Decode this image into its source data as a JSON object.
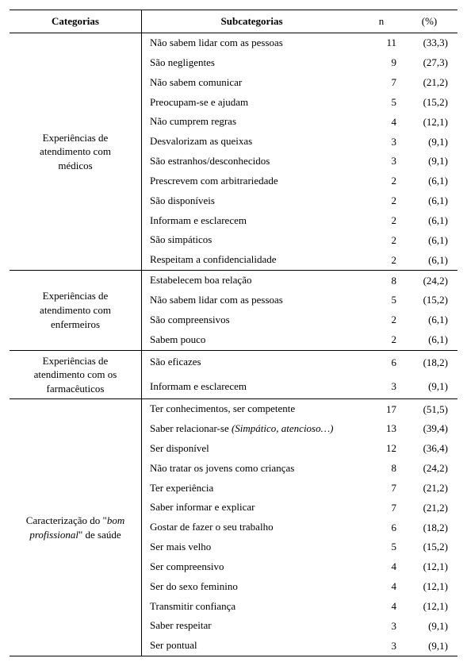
{
  "header": {
    "categorias": "Categorias",
    "subcategorias": "Subcategorias",
    "n": "n",
    "pct": "(%)"
  },
  "groups": [
    {
      "category": "Experiências de\natendimento com\nmédicos",
      "rows": [
        {
          "sub": "Não sabem lidar com as pessoas",
          "n": "11",
          "pct": "(33,3)"
        },
        {
          "sub": "São negligentes",
          "n": "9",
          "pct": "(27,3)"
        },
        {
          "sub": "Não sabem comunicar",
          "n": "7",
          "pct": "(21,2)"
        },
        {
          "sub": "Preocupam-se e ajudam",
          "n": "5",
          "pct": "(15,2)"
        },
        {
          "sub": "Não cumprem regras",
          "n": "4",
          "pct": "(12,1)"
        },
        {
          "sub": "Desvalorizam as queixas",
          "n": "3",
          "pct": "(9,1)"
        },
        {
          "sub": "São estranhos/desconhecidos",
          "n": "3",
          "pct": "(9,1)"
        },
        {
          "sub": "Prescrevem com arbitrariedade",
          "n": "2",
          "pct": "(6,1)"
        },
        {
          "sub": "São disponíveis",
          "n": "2",
          "pct": "(6,1)"
        },
        {
          "sub": "Informam e esclarecem",
          "n": "2",
          "pct": "(6,1)"
        },
        {
          "sub": "São simpáticos",
          "n": "2",
          "pct": "(6,1)"
        },
        {
          "sub": "Respeitam a confidencialidade",
          "n": "2",
          "pct": "(6,1)"
        }
      ]
    },
    {
      "category": "Experiências de\natendimento com\nenfermeiros",
      "rows": [
        {
          "sub": "Estabelecem boa relação",
          "n": "8",
          "pct": "(24,2)"
        },
        {
          "sub": "Não sabem lidar com as pessoas",
          "n": "5",
          "pct": "(15,2)"
        },
        {
          "sub": "São compreensivos",
          "n": "2",
          "pct": "(6,1)"
        },
        {
          "sub": "Sabem pouco",
          "n": "2",
          "pct": "(6,1)"
        }
      ]
    },
    {
      "category": "Experiências de\natendimento com os\nfarmacêuticos",
      "rows": [
        {
          "sub": "São eficazes",
          "n": "6",
          "pct": "(18,2)"
        },
        {
          "sub": "Informam e esclarecem",
          "n": "3",
          "pct": "(9,1)"
        }
      ]
    },
    {
      "category_pre": "Caracterização do \"",
      "category_italic": "bom\nprofissional",
      "category_post": "\" de saúde",
      "rows": [
        {
          "sub": "Ter conhecimentos, ser competente",
          "n": "17",
          "pct": "(51,5)"
        },
        {
          "sub_pre": "Saber relacionar-se ",
          "sub_italic": "(Simpático, atencioso…)",
          "n": "13",
          "pct": "(39,4)"
        },
        {
          "sub": "Ser disponível",
          "n": "12",
          "pct": "(36,4)"
        },
        {
          "sub": "Não tratar os jovens como crianças",
          "n": "8",
          "pct": "(24,2)"
        },
        {
          "sub": "Ter experiência",
          "n": "7",
          "pct": "(21,2)"
        },
        {
          "sub": "Saber informar e explicar",
          "n": "7",
          "pct": "(21,2)"
        },
        {
          "sub": "Gostar de fazer o seu trabalho",
          "n": "6",
          "pct": "(18,2)"
        },
        {
          "sub": "Ser mais velho",
          "n": "5",
          "pct": "(15,2)"
        },
        {
          "sub": "Ser compreensivo",
          "n": "4",
          "pct": "(12,1)"
        },
        {
          "sub": "Ser do sexo feminino",
          "n": "4",
          "pct": "(12,1)"
        },
        {
          "sub": "Transmitir confiança",
          "n": "4",
          "pct": "(12,1)"
        },
        {
          "sub": "Saber respeitar",
          "n": "3",
          "pct": "(9,1)"
        },
        {
          "sub": "Ser pontual",
          "n": "3",
          "pct": "(9,1)"
        }
      ]
    }
  ]
}
